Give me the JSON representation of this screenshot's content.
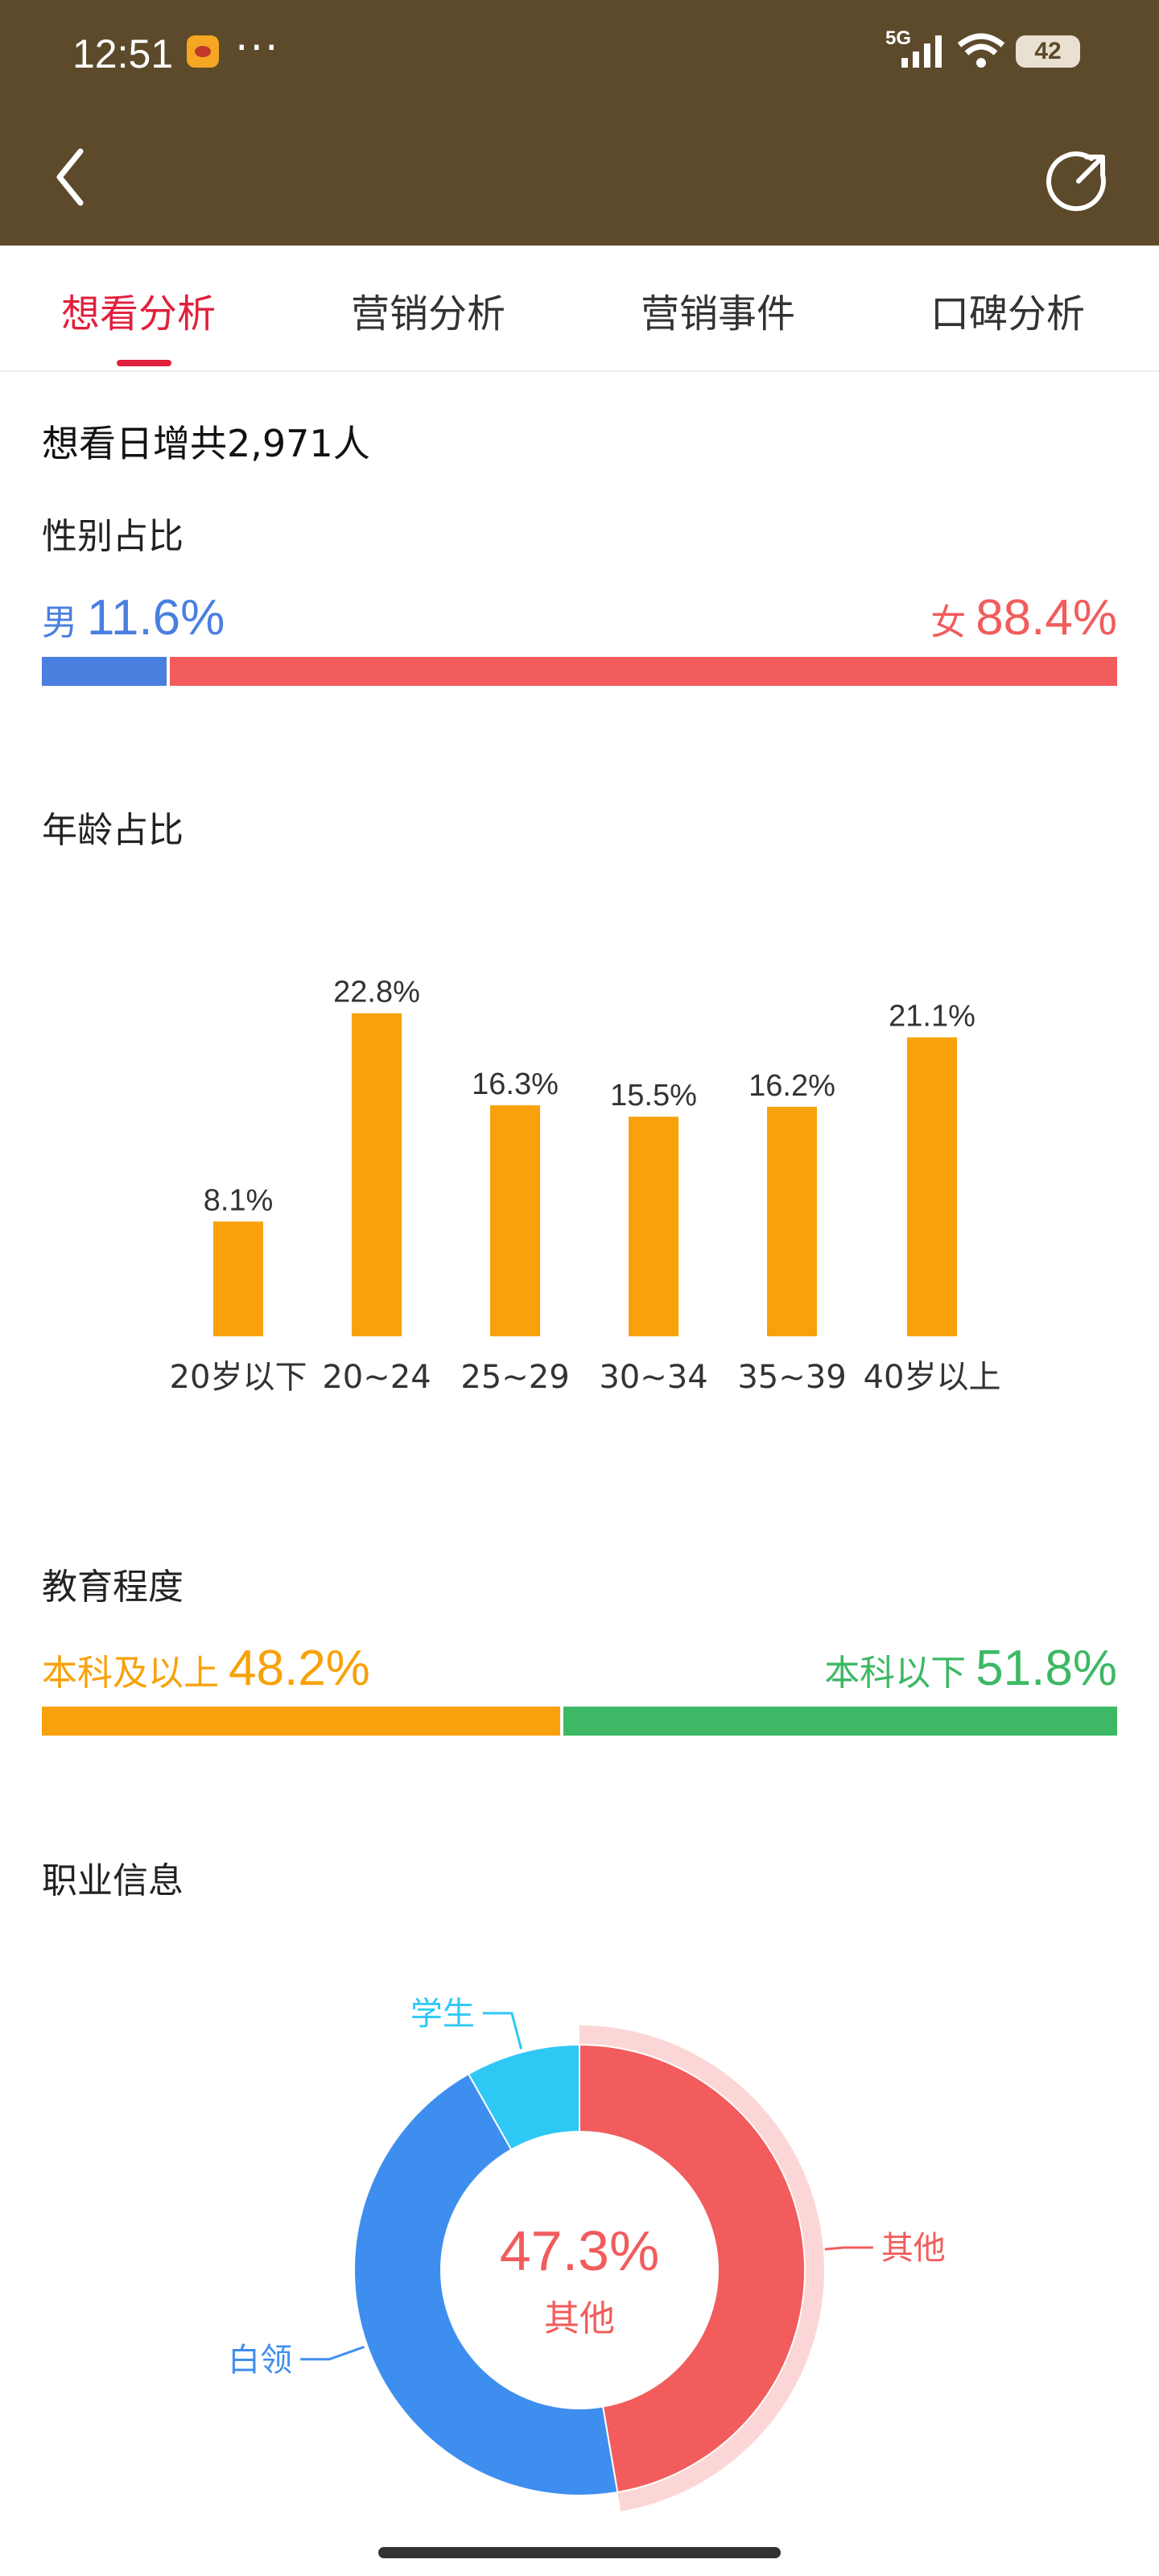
{
  "status_bar": {
    "time": "12:51",
    "dots": "···",
    "network": "5G",
    "battery": "42"
  },
  "tabs": [
    {
      "label": "想看分析",
      "active": true
    },
    {
      "label": "营销分析",
      "active": false
    },
    {
      "label": "营销事件",
      "active": false
    },
    {
      "label": "口碑分析",
      "active": false
    }
  ],
  "summary": {
    "text": "想看日增共2,971人"
  },
  "gender": {
    "title": "性别占比",
    "male_label": "男",
    "male_pct": "11.6%",
    "male_value": 11.6,
    "female_label": "女",
    "female_pct": "88.4%",
    "female_value": 88.4,
    "colors": {
      "male": "#4a7fe0",
      "female": "#f25c5c"
    }
  },
  "age": {
    "title": "年龄占比"
  },
  "education": {
    "title": "教育程度",
    "a_label": "本科及以上",
    "a_pct": "48.2%",
    "a_value": 48.2,
    "b_label": "本科以下",
    "b_pct": "51.8%",
    "b_value": 51.8,
    "colors": {
      "a": "#f8a10a",
      "b": "#3db864"
    }
  },
  "occupation": {
    "title": "职业信息",
    "center_pct": "47.3%",
    "center_label": "其他"
  },
  "chart_data": [
    {
      "type": "bar",
      "categories": [
        "20岁以下",
        "20~24",
        "25~29",
        "30~34",
        "35~39",
        "40岁以上"
      ],
      "values": [
        8.1,
        22.8,
        16.3,
        15.5,
        16.2,
        21.1
      ],
      "data_labels": [
        "8.1%",
        "22.8%",
        "16.3%",
        "15.5%",
        "16.2%",
        "21.1%"
      ],
      "color": "#f8a10a",
      "ylim": [
        0,
        25
      ]
    },
    {
      "type": "pie",
      "labels": [
        "其他",
        "白领",
        "学生"
      ],
      "values": [
        47.3,
        44.5,
        8.2
      ],
      "colors": [
        "#f25c5c",
        "#3e8ef0",
        "#2ec8f5"
      ],
      "highlight": "其他"
    }
  ]
}
